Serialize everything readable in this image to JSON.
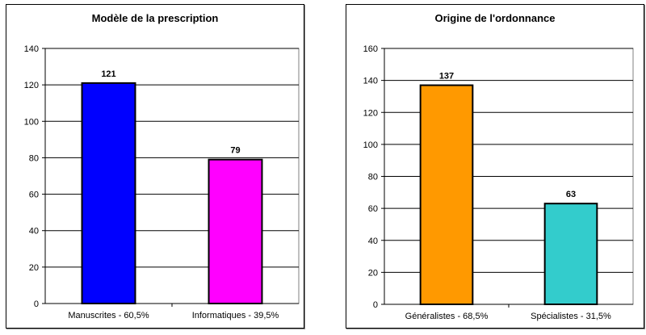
{
  "chart_data": [
    {
      "type": "bar",
      "title": "Modèle de la prescription",
      "categories": [
        "Manuscrites - 60,5%",
        "Informatiques - 39,5%"
      ],
      "values": [
        121,
        79
      ],
      "colors": [
        "#0000ff",
        "#ff00ff"
      ],
      "ylim": [
        0,
        140
      ],
      "yticks": [
        0,
        20,
        40,
        60,
        80,
        100,
        120,
        140
      ],
      "grid": true,
      "data_labels": true
    },
    {
      "type": "bar",
      "title": "Origine de l'ordonnance",
      "categories": [
        "Généralistes - 68,5%",
        "Spécialistes - 31,5%"
      ],
      "values": [
        137,
        63
      ],
      "colors": [
        "#ff9900",
        "#33cccc"
      ],
      "ylim": [
        0,
        160
      ],
      "yticks": [
        0,
        20,
        40,
        60,
        80,
        100,
        120,
        140,
        160
      ],
      "grid": true,
      "data_labels": true
    }
  ]
}
